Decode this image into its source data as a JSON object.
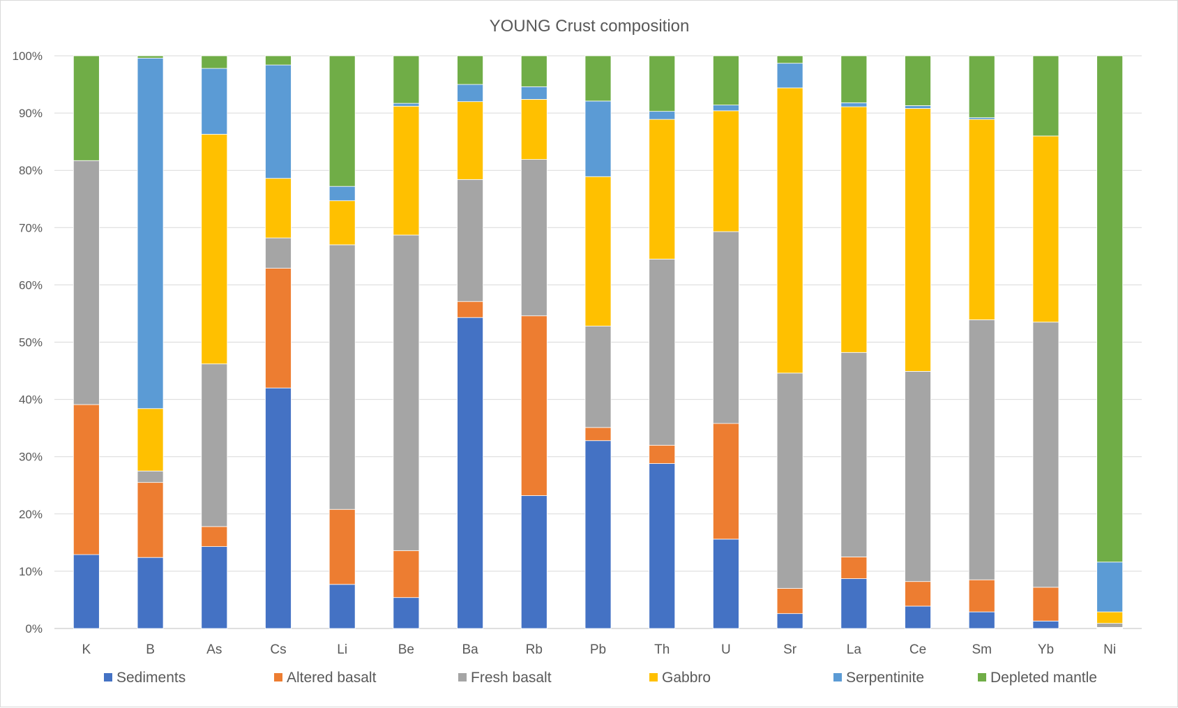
{
  "chart_data": {
    "type": "bar",
    "stacked": "percent",
    "title": "YOUNG Crust composition",
    "xlabel": "",
    "ylabel": "",
    "ylim": [
      0,
      100
    ],
    "yticks": [
      "0%",
      "10%",
      "20%",
      "30%",
      "40%",
      "50%",
      "60%",
      "70%",
      "80%",
      "90%",
      "100%"
    ],
    "grid": true,
    "legend_position": "bottom",
    "categories": [
      "K",
      "B",
      "As",
      "Cs",
      "Li",
      "Be",
      "Ba",
      "Rb",
      "Pb",
      "Th",
      "U",
      "Sr",
      "La",
      "Ce",
      "Sm",
      "Yb",
      "Ni"
    ],
    "series": [
      {
        "name": "Sediments",
        "color": "#4472C4",
        "values": [
          12.9,
          12.4,
          14.3,
          42.0,
          7.7,
          5.4,
          54.3,
          23.2,
          32.8,
          28.8,
          15.6,
          2.6,
          8.7,
          3.9,
          2.9,
          1.3,
          0.1
        ]
      },
      {
        "name": "Altered basalt",
        "color": "#ED7D31",
        "values": [
          26.2,
          13.1,
          3.5,
          20.9,
          13.1,
          8.2,
          2.8,
          31.4,
          2.3,
          3.2,
          20.2,
          4.4,
          3.8,
          4.3,
          5.6,
          5.9,
          0.1
        ]
      },
      {
        "name": "Fresh basalt",
        "color": "#A5A5A5",
        "values": [
          42.6,
          2.0,
          28.4,
          5.3,
          46.2,
          55.1,
          21.3,
          27.3,
          17.7,
          32.5,
          33.5,
          37.6,
          35.7,
          36.7,
          45.4,
          46.3,
          0.7
        ]
      },
      {
        "name": "Gabbro",
        "color": "#FFC000",
        "values": [
          0.0,
          10.9,
          40.1,
          10.4,
          7.7,
          22.5,
          13.6,
          10.5,
          26.1,
          24.4,
          21.1,
          49.8,
          42.9,
          45.9,
          35.0,
          32.5,
          2.0
        ]
      },
      {
        "name": "Serpentinite",
        "color": "#5B9BD5",
        "values": [
          0.0,
          61.2,
          11.5,
          19.8,
          2.5,
          0.5,
          3.0,
          2.2,
          13.2,
          1.4,
          1.0,
          4.3,
          0.7,
          0.5,
          0.3,
          0.0,
          8.7
        ]
      },
      {
        "name": "Depleted mantle",
        "color": "#70AD47",
        "values": [
          18.3,
          0.4,
          2.2,
          1.6,
          22.8,
          8.3,
          5.0,
          5.4,
          7.9,
          9.7,
          8.6,
          1.3,
          8.2,
          8.7,
          10.8,
          14.0,
          88.4
        ]
      }
    ]
  }
}
